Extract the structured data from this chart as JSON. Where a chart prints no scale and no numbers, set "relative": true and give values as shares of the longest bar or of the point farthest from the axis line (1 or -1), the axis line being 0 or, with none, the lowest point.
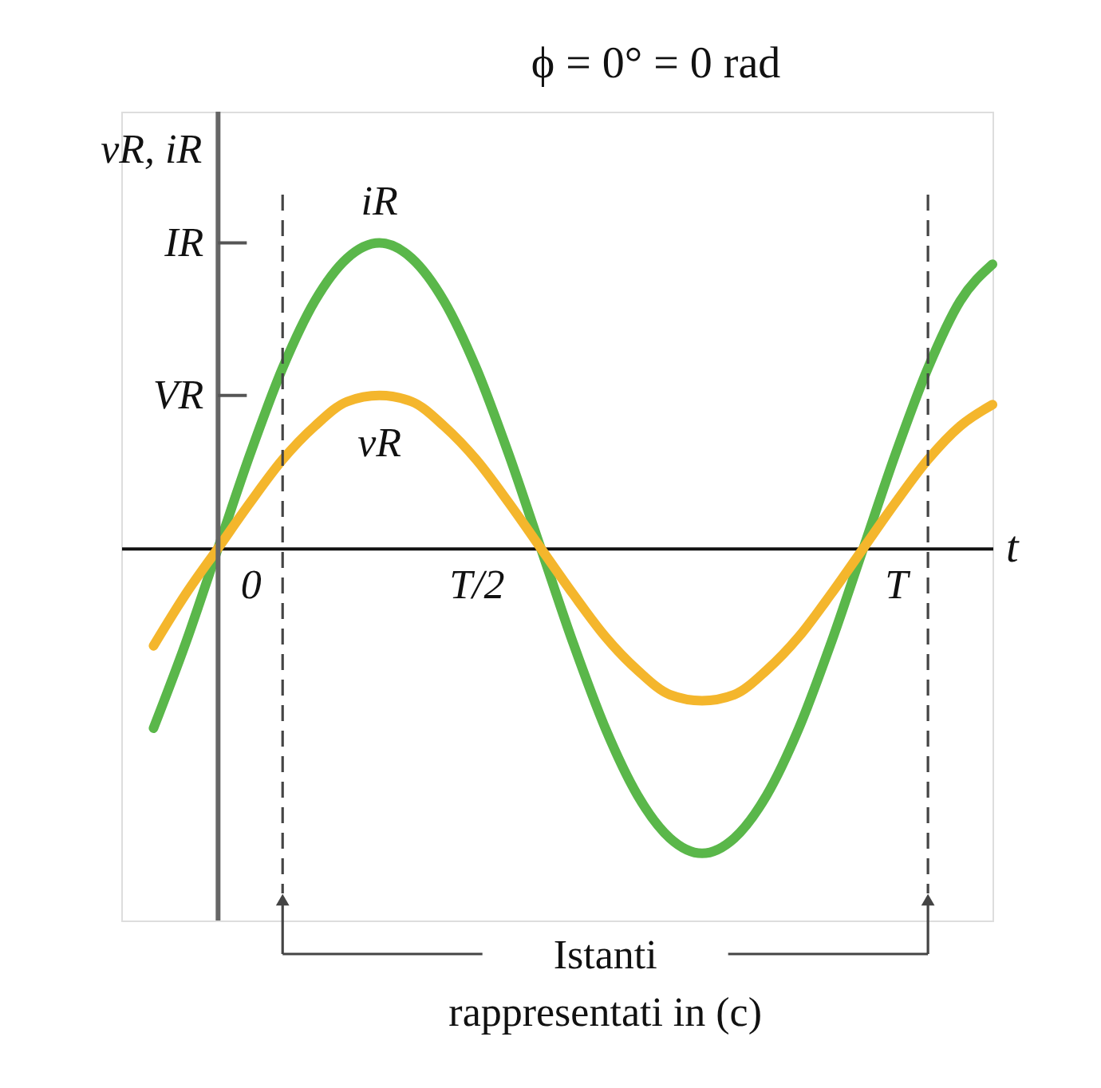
{
  "chart_data": {
    "type": "line",
    "title": "ϕ = 0° = 0 rad",
    "xlabel": "t",
    "ylabel": "vR, iR",
    "relative": true,
    "categories": [
      null,
      null,
      null,
      null,
      "0",
      null,
      null,
      null,
      null,
      null,
      null,
      "T/2",
      null,
      null,
      null,
      null,
      null,
      null,
      null,
      null,
      null,
      null,
      null,
      null,
      "T",
      null,
      null,
      null
    ],
    "series": [
      {
        "name": "iR",
        "color": "#5ab74a",
        "values": [
          null,
          -0.59,
          -0.31,
          0,
          0.31,
          0.59,
          0.81,
          0.95,
          1,
          0.95,
          0.81,
          0.59,
          0.31,
          0,
          -0.31,
          -0.59,
          -0.81,
          -0.95,
          -1,
          -0.95,
          -0.81,
          -0.59,
          -0.31,
          0,
          0.31,
          0.59,
          0.81,
          0.93
        ]
      },
      {
        "name": "vR",
        "color": "#f4b62c",
        "values": [
          null,
          -0.32,
          -0.15,
          0,
          0.15,
          0.29,
          0.4,
          0.48,
          0.5,
          0.48,
          0.4,
          0.29,
          0.15,
          0,
          -0.15,
          -0.29,
          -0.4,
          -0.48,
          -0.5,
          -0.48,
          -0.4,
          -0.29,
          -0.15,
          0,
          0.15,
          0.29,
          0.4,
          0.47
        ]
      }
    ],
    "annotations": [
      "IR",
      "VR",
      "Istanti\nrappresentati in (c)"
    ]
  }
}
